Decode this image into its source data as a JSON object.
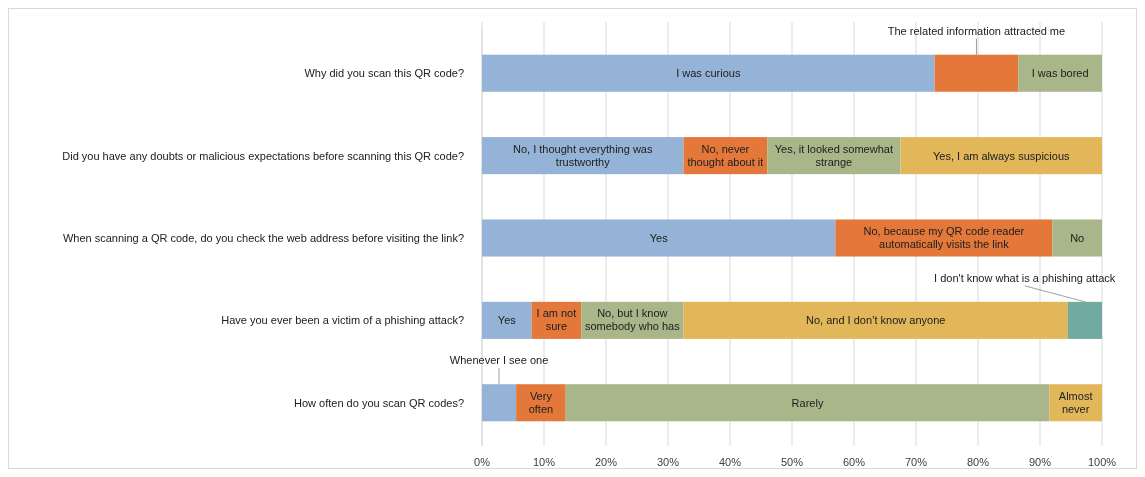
{
  "chart_data": {
    "type": "bar",
    "orientation": "horizontal",
    "stacked": true,
    "grid": "x",
    "categories": [
      "Why did you scan this QR code?",
      "Did you have any doubts or malicious expectations before scanning this QR code?",
      "When scanning a QR code, do you check the web address before visiting the link?",
      "Have you ever been a victim of a phishing attack?",
      "How often do you scan QR codes?"
    ],
    "xlim": [
      0,
      100
    ],
    "xticks": [
      {
        "value": 0,
        "label": "0%"
      },
      {
        "value": 10,
        "label": "10%"
      },
      {
        "value": 20,
        "label": "20%"
      },
      {
        "value": 30,
        "label": "30%"
      },
      {
        "value": 40,
        "label": "40%"
      },
      {
        "value": 50,
        "label": "50%"
      },
      {
        "value": 60,
        "label": "60%"
      },
      {
        "value": 70,
        "label": "70%"
      },
      {
        "value": 80,
        "label": "80%"
      },
      {
        "value": 90,
        "label": "90%"
      },
      {
        "value": 100,
        "label": "100%"
      }
    ],
    "series": [
      {
        "color": "#95b3d7",
        "values": [
          73,
          32.5,
          57,
          8,
          5.5
        ],
        "value_labels": [
          "I was curious",
          "No, I thought everything was trustworthy",
          "Yes",
          "Yes",
          "Whenever I see one"
        ]
      },
      {
        "color": "#e3783a",
        "values": [
          13.5,
          13.5,
          35,
          8,
          8
        ],
        "value_labels": [
          "The related information attracted me",
          "No, never thought about it",
          "No, because my QR code reader automatically visits the link",
          "I am not sure",
          "Very often"
        ]
      },
      {
        "color": "#a9b68a",
        "values": [
          13.5,
          21.5,
          8,
          16.5,
          78
        ],
        "value_labels": [
          "I was bored",
          "Yes, it looked somewhat strange",
          "No",
          "No, but I know somebody who has",
          "Rarely"
        ]
      },
      {
        "color": "#e2b75a",
        "values": [
          null,
          32.5,
          null,
          62,
          8.5
        ],
        "value_labels": [
          null,
          "Yes, I am always suspicious",
          null,
          "No, and I don’t know anyone",
          "Almost never"
        ]
      },
      {
        "color": "#70aaa1",
        "values": [
          null,
          null,
          null,
          5.5,
          null
        ],
        "value_labels": [
          null,
          null,
          null,
          "I don't know what is a phishing attack",
          null
        ]
      }
    ]
  }
}
